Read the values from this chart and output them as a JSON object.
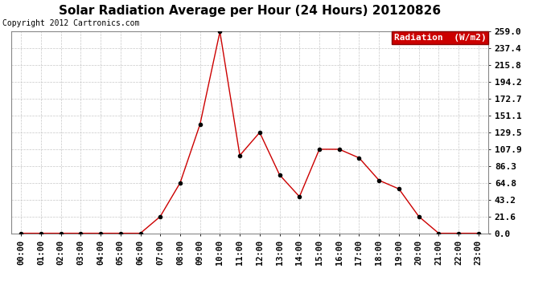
{
  "title": "Solar Radiation Average per Hour (24 Hours) 20120826",
  "copyright": "Copyright 2012 Cartronics.com",
  "legend_label": "Radiation  (W/m2)",
  "hours": [
    "00:00",
    "01:00",
    "02:00",
    "03:00",
    "04:00",
    "05:00",
    "06:00",
    "07:00",
    "08:00",
    "09:00",
    "10:00",
    "11:00",
    "12:00",
    "13:00",
    "14:00",
    "15:00",
    "16:00",
    "17:00",
    "18:00",
    "19:00",
    "20:00",
    "21:00",
    "22:00",
    "23:00"
  ],
  "values": [
    0.0,
    0.0,
    0.0,
    0.0,
    0.0,
    0.0,
    0.0,
    21.6,
    64.8,
    140.0,
    259.0,
    100.0,
    129.5,
    75.0,
    47.0,
    107.9,
    107.9,
    96.8,
    68.0,
    57.0,
    21.6,
    0.0,
    0.0,
    0.0
  ],
  "yticks": [
    0.0,
    21.6,
    43.2,
    64.8,
    86.3,
    107.9,
    129.5,
    151.1,
    172.7,
    194.2,
    215.8,
    237.4,
    259.0
  ],
  "line_color": "#cc0000",
  "marker_color": "#000000",
  "grid_color": "#c8c8c8",
  "bg_color": "#ffffff",
  "legend_bg": "#cc0000",
  "legend_text_color": "#ffffff",
  "title_color": "#000000",
  "copyright_color": "#000000",
  "ylim_max": 259.0,
  "title_fontsize": 11,
  "copyright_fontsize": 7,
  "tick_fontsize": 8,
  "legend_fontsize": 8
}
